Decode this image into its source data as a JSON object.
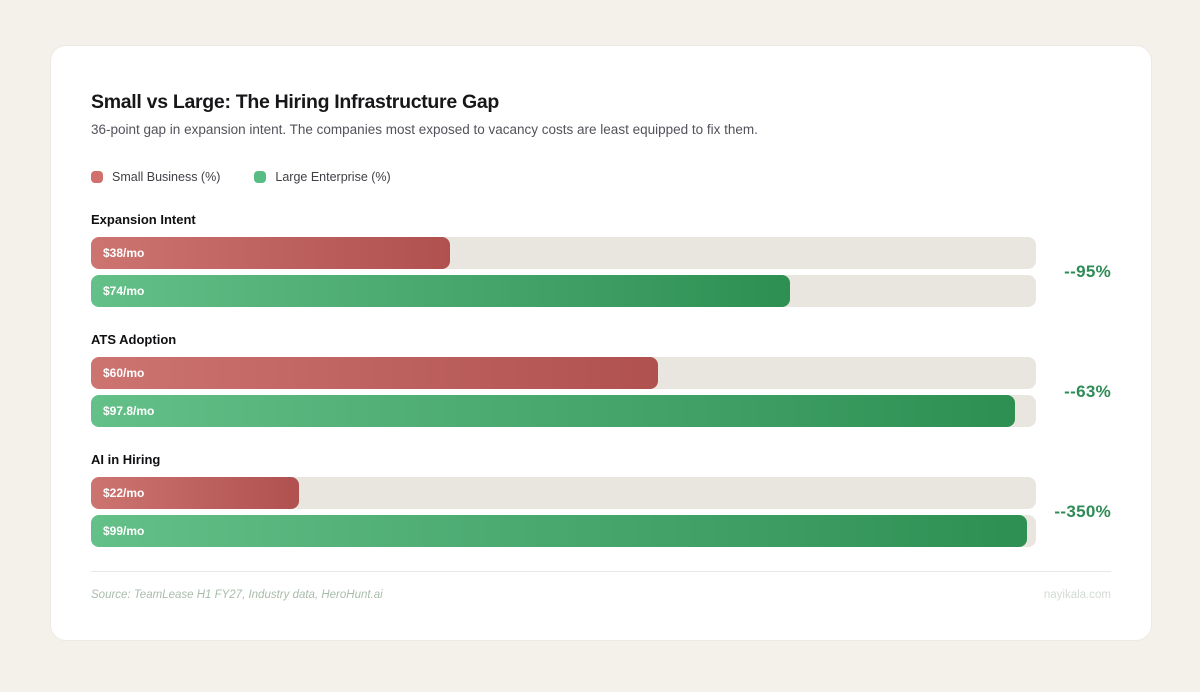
{
  "card": {
    "title": "Small vs Large: The Hiring Infrastructure Gap",
    "subtitle": "36-point gap in expansion intent. The companies most exposed to vacancy costs are least equipped to fix them."
  },
  "legend": {
    "items": [
      {
        "label": "Small Business (%)",
        "color": "#d1706c"
      },
      {
        "label": "Large Enterprise (%)",
        "color": "#57bd84"
      }
    ]
  },
  "chart_data": {
    "type": "bar",
    "orientation": "horizontal",
    "title": "Small vs Large: The Hiring Infrastructure Gap",
    "subtitle": "36-point gap in expansion intent. The companies most exposed to vacancy costs are least equipped to fix them.",
    "categories": [
      "Expansion Intent",
      "ATS Adoption",
      "AI in Hiring"
    ],
    "series": [
      {
        "name": "Small Business (%)",
        "values": [
          38,
          60,
          22
        ],
        "bar_labels": [
          "$38/mo",
          "$60/mo",
          "$22/mo"
        ],
        "color_start": "#cd7470",
        "color_end": "#b0514f"
      },
      {
        "name": "Large Enterprise (%)",
        "values": [
          74,
          97.8,
          99
        ],
        "bar_labels": [
          "$74/mo",
          "$97.8/mo",
          "$99/mo"
        ],
        "color_start": "#63c088",
        "color_end": "#2e8f53"
      }
    ],
    "gap_annotations": [
      "--95%",
      "--63%",
      "--350%"
    ],
    "xlim": [
      0,
      100
    ],
    "grid": false,
    "legend_position": "top",
    "track_color": "#e9e6df",
    "annotation_color": "#2e8b57"
  },
  "footer": {
    "source": "Source: TeamLease H1 FY27, Industry data, HeroHunt.ai",
    "brand": "nayikala.com"
  }
}
